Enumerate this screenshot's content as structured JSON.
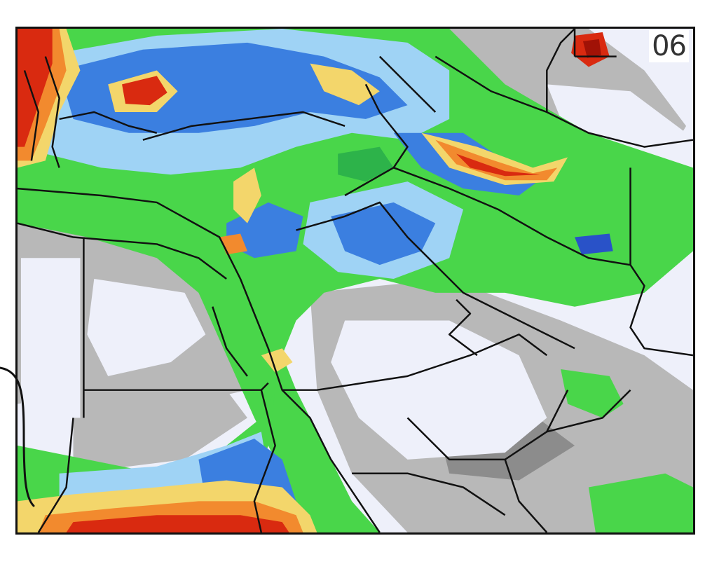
{
  "map": {
    "panel_label": "06",
    "colors": {
      "background": "#eef0fa",
      "gray_light": "#b8b8b8",
      "gray_dark": "#8c8c8c",
      "green": "#49d64a",
      "green_dark": "#2db34a",
      "light_blue": "#9fd3f5",
      "blue": "#3b7fe0",
      "blue_dark": "#2952c8",
      "yellow": "#f3d66b",
      "orange": "#f28a2e",
      "red": "#d92a10",
      "dark_red": "#a11206",
      "border": "#111111"
    }
  }
}
